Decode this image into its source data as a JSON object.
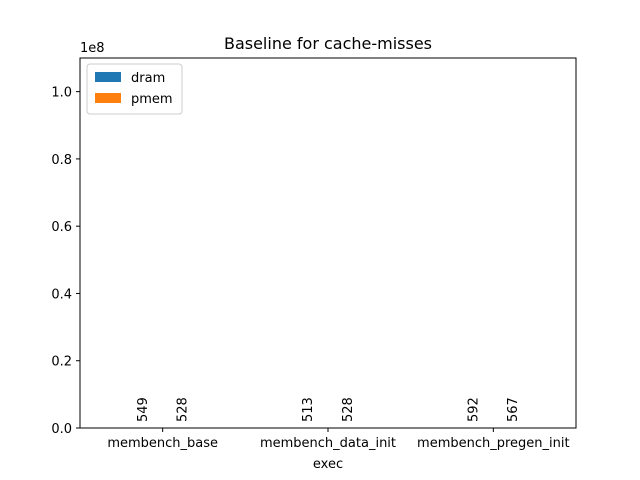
{
  "chart_data": {
    "type": "bar",
    "title": "Baseline for cache-misses",
    "xlabel": "exec",
    "ylabel": "",
    "categories": [
      "membench_base",
      "membench_data_init",
      "membench_pregen_init"
    ],
    "series": [
      {
        "name": "dram",
        "color": "#1f77b4",
        "values": [
          549,
          513,
          592
        ]
      },
      {
        "name": "pmem",
        "color": "#ff7f0e",
        "values": [
          528,
          528,
          567
        ]
      }
    ],
    "data_labels": [
      [
        "549",
        "528"
      ],
      [
        "513",
        "528"
      ],
      [
        "592",
        "567"
      ]
    ],
    "ylim": [
      0,
      110000000
    ],
    "y_ticks": [
      0,
      20000000,
      40000000,
      60000000,
      80000000,
      100000000
    ],
    "y_tick_labels": [
      "0.0",
      "0.2",
      "0.4",
      "0.6",
      "0.8",
      "1.0"
    ],
    "y_offset_label": "1e8",
    "legend_position": "top-left",
    "grid": false
  }
}
